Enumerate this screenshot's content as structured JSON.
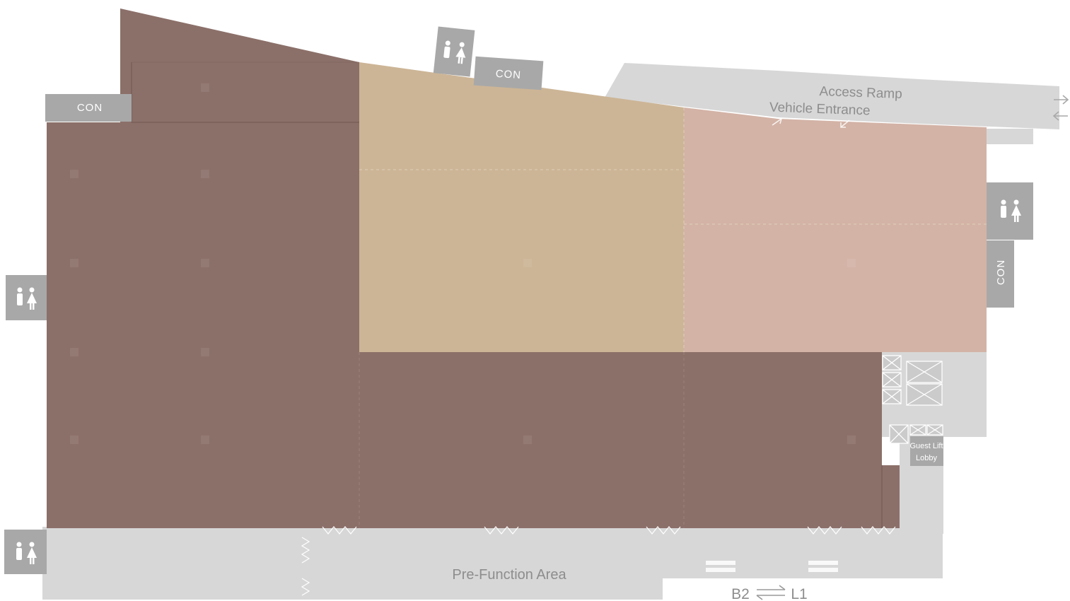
{
  "colors": {
    "ballroom": "#8b7069",
    "section_b": "#ccb596",
    "section_c": "#d3b3a6",
    "service": "#d7d7d7",
    "icon_box": "#a8a8a8",
    "label_text": "#8d8d8d"
  },
  "labels": {
    "con_top_left": "CON",
    "con_top_center": "CON",
    "con_right": "CON",
    "access_ramp": "Access Ramp",
    "vehicle_entrance": "Vehicle Entrance",
    "pre_function": "Pre-Function Area",
    "guest_lift_line1": "Guest Lift",
    "guest_lift_line2": "Lobby",
    "level_from": "B2",
    "level_to": "L1"
  },
  "icons": [
    "restroom-icon",
    "elevator-icon",
    "stairs-icon",
    "escalator-icon",
    "arrow-right-icon",
    "arrow-left-icon",
    "swap-arrows-icon"
  ]
}
